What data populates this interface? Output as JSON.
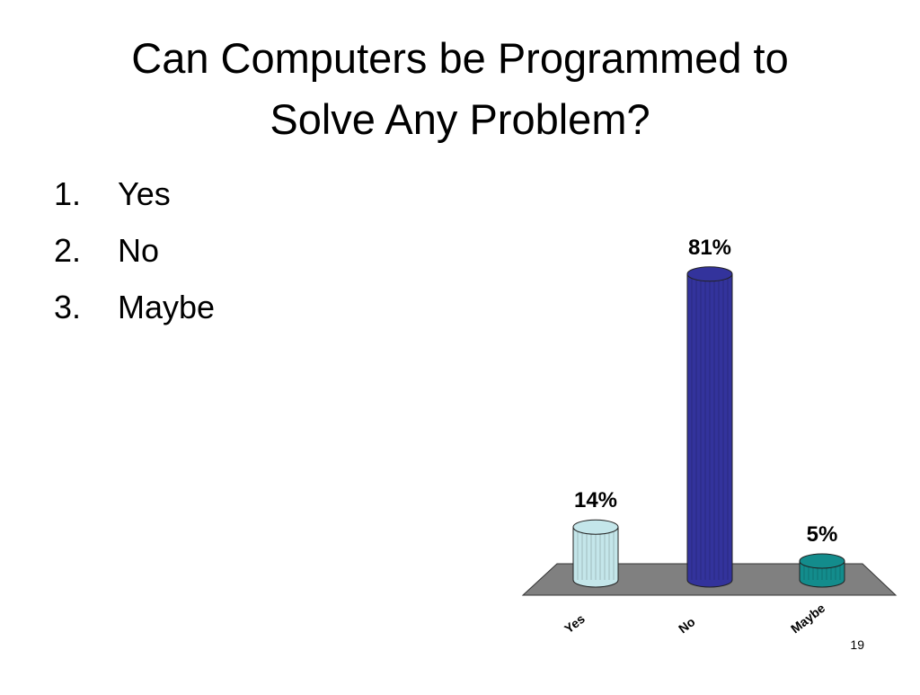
{
  "title": [
    "Can Computers be Programmed to",
    "Solve Any Problem?"
  ],
  "list": [
    {
      "marker": "1.",
      "text": "Yes"
    },
    {
      "marker": "2.",
      "text": "No"
    },
    {
      "marker": "3.",
      "text": "Maybe"
    }
  ],
  "page_number": 19,
  "chart_data": {
    "type": "bar",
    "categories": [
      "Yes",
      "No",
      "Maybe"
    ],
    "values": [
      14,
      81,
      5
    ],
    "value_labels": [
      "14%",
      "81%",
      "5%"
    ],
    "colors": [
      "#c4e6ea",
      "#33339c",
      "#138c8c"
    ]
  }
}
